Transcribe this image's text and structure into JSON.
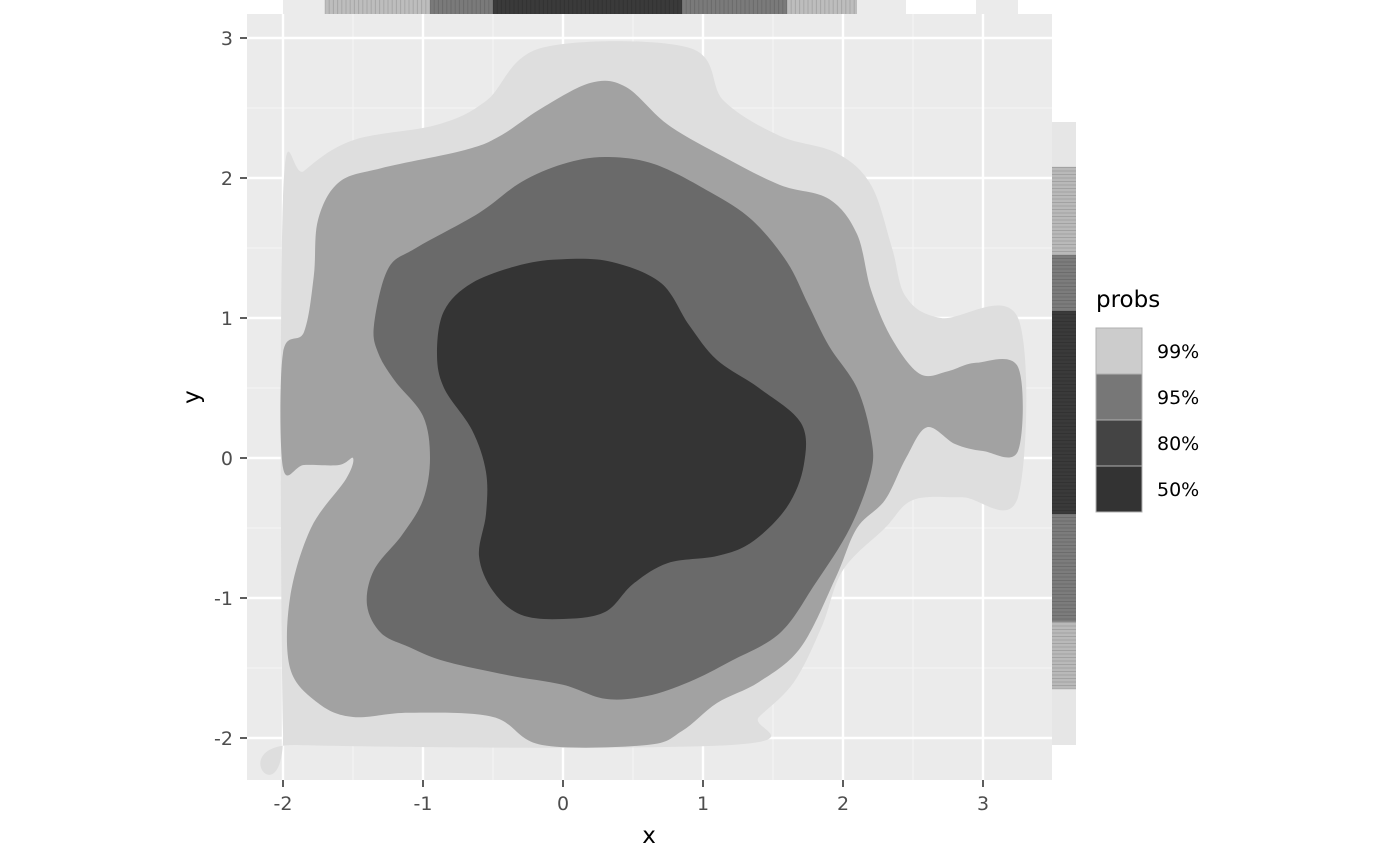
{
  "chart_data": {
    "type": "contour",
    "title": "",
    "xlabel": "x",
    "ylabel": "y",
    "xlim": [
      -2.25,
      3.5
    ],
    "ylim": [
      -2.3,
      3.15
    ],
    "x_ticks": [
      -2,
      -1,
      0,
      1,
      2,
      3
    ],
    "y_ticks": [
      -2,
      -1,
      0,
      1,
      2,
      3
    ],
    "x_tick_labels": [
      "-2",
      "-1",
      "0",
      "1",
      "2",
      "3"
    ],
    "y_tick_labels": [
      "-2",
      "-1",
      "0",
      "1",
      "2",
      "3"
    ],
    "grid": true,
    "legend": {
      "title": "probs",
      "position": "right",
      "entries": [
        {
          "label": "99%",
          "color": "#cccccc"
        },
        {
          "label": "95%",
          "color": "#777777"
        },
        {
          "label": "80%",
          "color": "#444444"
        },
        {
          "label": "50%",
          "color": "#333333"
        }
      ]
    },
    "series": [
      {
        "name": "99%",
        "fill": "#dedede",
        "points": [
          [
            -2,
            1.85
          ],
          [
            -1.85,
            2.05
          ],
          [
            -1.5,
            2.27
          ],
          [
            -0.9,
            2.38
          ],
          [
            -0.55,
            2.55
          ],
          [
            -0.15,
            2.93
          ],
          [
            0.9,
            2.93
          ],
          [
            1.15,
            2.55
          ],
          [
            1.55,
            2.3
          ],
          [
            1.95,
            2.18
          ],
          [
            2.2,
            1.95
          ],
          [
            2.35,
            1.5
          ],
          [
            2.45,
            1.15
          ],
          [
            2.7,
            1.0
          ],
          [
            3.25,
            1.0
          ],
          [
            3.25,
            -0.28
          ],
          [
            2.85,
            -0.28
          ],
          [
            2.5,
            -0.3
          ],
          [
            2.3,
            -0.5
          ],
          [
            2.0,
            -0.8
          ],
          [
            1.85,
            -1.2
          ],
          [
            1.65,
            -1.6
          ],
          [
            1.4,
            -1.85
          ],
          [
            1.2,
            -2.05
          ],
          [
            -1.9,
            -2.05
          ],
          [
            -2,
            -1.95
          ]
        ]
      },
      {
        "name": "95%",
        "fill": "#a2a2a2",
        "points": [
          [
            -2,
            0.75
          ],
          [
            -1.85,
            0.9
          ],
          [
            -1.78,
            1.3
          ],
          [
            -1.75,
            1.7
          ],
          [
            -1.6,
            1.97
          ],
          [
            -1.3,
            2.07
          ],
          [
            -0.7,
            2.2
          ],
          [
            -0.45,
            2.3
          ],
          [
            -0.15,
            2.5
          ],
          [
            0.2,
            2.68
          ],
          [
            0.45,
            2.65
          ],
          [
            0.75,
            2.38
          ],
          [
            1.15,
            2.15
          ],
          [
            1.55,
            1.95
          ],
          [
            1.9,
            1.85
          ],
          [
            2.1,
            1.6
          ],
          [
            2.2,
            1.2
          ],
          [
            2.35,
            0.85
          ],
          [
            2.55,
            0.6
          ],
          [
            2.75,
            0.62
          ],
          [
            2.95,
            0.68
          ],
          [
            3.25,
            0.65
          ],
          [
            3.25,
            0.05
          ],
          [
            3.0,
            0.05
          ],
          [
            2.8,
            0.1
          ],
          [
            2.6,
            0.22
          ],
          [
            2.45,
            0.0
          ],
          [
            2.3,
            -0.3
          ],
          [
            2.1,
            -0.5
          ],
          [
            1.95,
            -0.85
          ],
          [
            1.7,
            -1.35
          ],
          [
            1.4,
            -1.6
          ],
          [
            1.1,
            -1.75
          ],
          [
            0.85,
            -1.95
          ],
          [
            0.6,
            -2.05
          ],
          [
            -0.15,
            -2.05
          ],
          [
            -0.5,
            -1.85
          ],
          [
            -1.1,
            -1.82
          ],
          [
            -1.5,
            -1.85
          ],
          [
            -1.75,
            -1.75
          ],
          [
            -1.95,
            -1.5
          ],
          [
            -1.95,
            -1.0
          ],
          [
            -1.8,
            -0.5
          ],
          [
            -1.55,
            -0.15
          ],
          [
            -1.5,
            0.0
          ],
          [
            -1.6,
            -0.05
          ],
          [
            -1.85,
            -0.05
          ],
          [
            -2,
            -0.07
          ]
        ]
      },
      {
        "name": "80%",
        "fill": "#6a6a6a",
        "points": [
          [
            -1.35,
            0.95
          ],
          [
            -1.25,
            1.35
          ],
          [
            -1.05,
            1.5
          ],
          [
            -0.6,
            1.75
          ],
          [
            -0.3,
            1.97
          ],
          [
            0.0,
            2.1
          ],
          [
            0.3,
            2.15
          ],
          [
            0.65,
            2.1
          ],
          [
            1.05,
            1.9
          ],
          [
            1.35,
            1.7
          ],
          [
            1.6,
            1.4
          ],
          [
            1.75,
            1.1
          ],
          [
            1.9,
            0.8
          ],
          [
            2.1,
            0.5
          ],
          [
            2.2,
            0.15
          ],
          [
            2.2,
            -0.1
          ],
          [
            2.05,
            -0.5
          ],
          [
            1.8,
            -0.9
          ],
          [
            1.55,
            -1.25
          ],
          [
            1.2,
            -1.45
          ],
          [
            0.9,
            -1.6
          ],
          [
            0.6,
            -1.7
          ],
          [
            0.3,
            -1.72
          ],
          [
            0.0,
            -1.62
          ],
          [
            -0.4,
            -1.55
          ],
          [
            -0.85,
            -1.45
          ],
          [
            -1.1,
            -1.35
          ],
          [
            -1.3,
            -1.25
          ],
          [
            -1.4,
            -1.05
          ],
          [
            -1.35,
            -0.8
          ],
          [
            -1.15,
            -0.55
          ],
          [
            -1.0,
            -0.3
          ],
          [
            -0.95,
            0.0
          ],
          [
            -1.0,
            0.3
          ],
          [
            -1.2,
            0.55
          ],
          [
            -1.32,
            0.75
          ]
        ]
      },
      {
        "name": "50%",
        "fill": "#343434",
        "points": [
          [
            -0.9,
            0.75
          ],
          [
            -0.85,
            1.05
          ],
          [
            -0.65,
            1.25
          ],
          [
            -0.3,
            1.38
          ],
          [
            0.0,
            1.42
          ],
          [
            0.35,
            1.4
          ],
          [
            0.7,
            1.25
          ],
          [
            0.9,
            0.95
          ],
          [
            1.1,
            0.7
          ],
          [
            1.4,
            0.5
          ],
          [
            1.7,
            0.25
          ],
          [
            1.72,
            -0.05
          ],
          [
            1.6,
            -0.35
          ],
          [
            1.35,
            -0.6
          ],
          [
            1.1,
            -0.7
          ],
          [
            0.75,
            -0.75
          ],
          [
            0.5,
            -0.9
          ],
          [
            0.3,
            -1.1
          ],
          [
            0.0,
            -1.15
          ],
          [
            -0.3,
            -1.12
          ],
          [
            -0.5,
            -0.95
          ],
          [
            -0.6,
            -0.7
          ],
          [
            -0.55,
            -0.4
          ],
          [
            -0.55,
            -0.1
          ],
          [
            -0.65,
            0.2
          ],
          [
            -0.85,
            0.5
          ]
        ]
      }
    ],
    "marginal_x": {
      "bands": [
        {
          "from": -1.7,
          "to": 2.1,
          "fill": "#bdbdbd"
        },
        {
          "from": -0.95,
          "to": 1.6,
          "fill": "#7a7a7a"
        },
        {
          "from": -0.5,
          "to": 0.85,
          "fill": "#3a3a3a"
        }
      ]
    },
    "marginal_y": {
      "bands": [
        {
          "from": -2.05,
          "to": 2.4,
          "fill": "#e6e6e6"
        },
        {
          "from": -1.65,
          "to": 2.08,
          "fill": "#b9b9b9"
        },
        {
          "from": -1.17,
          "to": 1.45,
          "fill": "#7c7c7c"
        },
        {
          "from": -0.4,
          "to": 1.05,
          "fill": "#3a3a3a"
        }
      ]
    }
  }
}
